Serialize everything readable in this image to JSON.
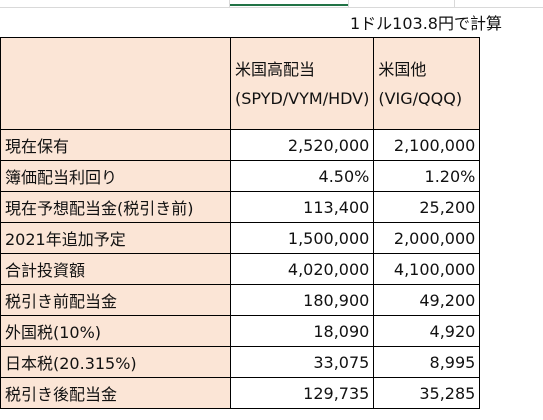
{
  "note": "1ドル103.8円で計算",
  "header": {
    "col_a": "米国高配当(SPYD/VYM/HDV)",
    "col_b": "米国他(VIG/QQQ)"
  },
  "rows": [
    {
      "label": "現在保有",
      "a": "2,520,000",
      "b": "2,100,000"
    },
    {
      "label": "簿価配当利回り",
      "a": "4.50%",
      "b": "1.20%"
    },
    {
      "label": "現在予想配当金(税引き前)",
      "a": "113,400",
      "b": "25,200"
    },
    {
      "label": "2021年追加予定",
      "a": "1,500,000",
      "b": "2,000,000"
    },
    {
      "label": "合計投資額",
      "a": "4,020,000",
      "b": "4,100,000"
    },
    {
      "label": "税引き前配当金",
      "a": "180,900",
      "b": "49,200"
    },
    {
      "label": "外国税(10%)",
      "a": "18,090",
      "b": "4,920"
    },
    {
      "label": "日本税(20.315%)",
      "a": "33,075",
      "b": "8,995"
    },
    {
      "label": "税引き後配当金",
      "a": "129,735",
      "b": "35,285"
    }
  ],
  "colors": {
    "label_fill": "#fbe5d6",
    "selection_accent": "#217346"
  }
}
